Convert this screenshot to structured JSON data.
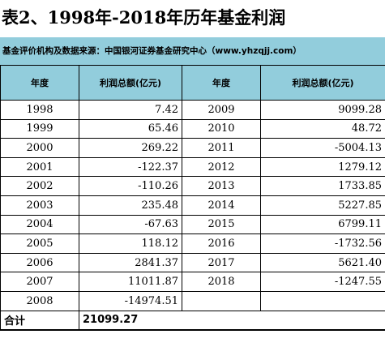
{
  "title": "表2、1998年-2018年历年基金利润",
  "source": "基金评价机构及数据来源：中国银河证券基金研究中心（www.yhzqjj.com）",
  "headers": {
    "year_left": "年度",
    "profit_left": "利润总额(亿元)",
    "year_right": "年度",
    "profit_right": "利润总额(亿元)"
  },
  "rows": [
    {
      "year_left": "1998",
      "profit_left": "7.42",
      "year_right": "2009",
      "profit_right": "9099.28"
    },
    {
      "year_left": "1999",
      "profit_left": "65.46",
      "year_right": "2010",
      "profit_right": "48.72"
    },
    {
      "year_left": "2000",
      "profit_left": "269.22",
      "year_right": "2011",
      "profit_right": "-5004.13"
    },
    {
      "year_left": "2001",
      "profit_left": "-122.37",
      "year_right": "2012",
      "profit_right": "1279.12"
    },
    {
      "year_left": "2002",
      "profit_left": "-110.26",
      "year_right": "2013",
      "profit_right": "1733.85"
    },
    {
      "year_left": "2003",
      "profit_left": "235.48",
      "year_right": "2014",
      "profit_right": "5227.85"
    },
    {
      "year_left": "2004",
      "profit_left": "-67.63",
      "year_right": "2015",
      "profit_right": "6799.11"
    },
    {
      "year_left": "2005",
      "profit_left": "118.12",
      "year_right": "2016",
      "profit_right": "-1732.56"
    },
    {
      "year_left": "2006",
      "profit_left": "2841.37",
      "year_right": "2017",
      "profit_right": "5621.40"
    },
    {
      "year_left": "2007",
      "profit_left": "11011.87",
      "year_right": "2018",
      "profit_right": "-1247.55"
    },
    {
      "year_left": "2008",
      "profit_left": "-14974.51",
      "year_right": "",
      "profit_right": ""
    }
  ],
  "total": {
    "label": "合计",
    "value": "21099.27"
  },
  "colors": {
    "header_bg": "#92cddc"
  }
}
